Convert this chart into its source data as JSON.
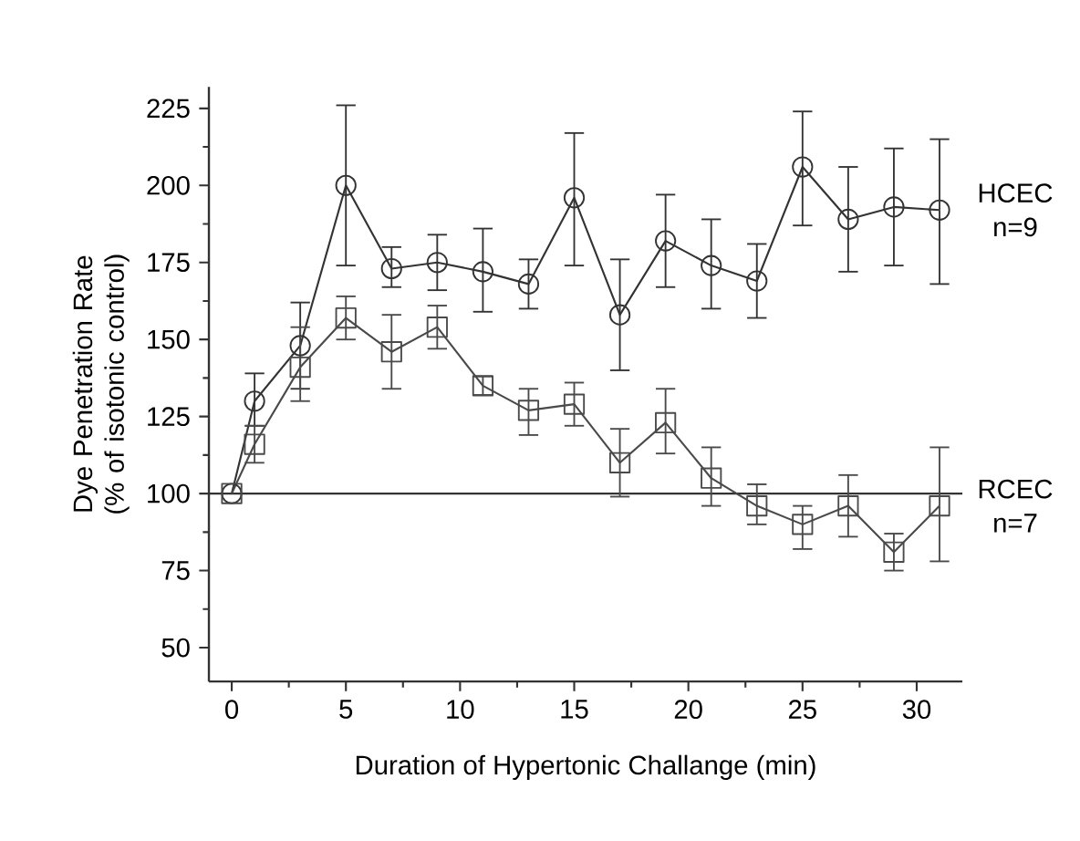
{
  "chart_data": {
    "type": "line",
    "xlabel": "Duration of Hypertonic Challange (min)",
    "ylabel": "Dye Penetration Rate (% of isotonic control)",
    "x": [
      0,
      1,
      3,
      5,
      7,
      9,
      11,
      13,
      15,
      17,
      19,
      21,
      23,
      25,
      27,
      29,
      31
    ],
    "xlim": [
      -1,
      32
    ],
    "xticks": [
      0,
      5,
      10,
      15,
      20,
      25,
      30
    ],
    "ylim": [
      39,
      232
    ],
    "yticks": [
      50,
      75,
      100,
      125,
      150,
      175,
      200,
      225
    ],
    "series": [
      {
        "name": "HCEC",
        "color": "#333333",
        "marker": "circle",
        "values": [
          100,
          130,
          148,
          200,
          173,
          175,
          172,
          168,
          196,
          158,
          182,
          174,
          169,
          206,
          189,
          193,
          192
        ],
        "errors": [
          null,
          [
            122,
            139
          ],
          [
            134,
            162
          ],
          [
            174,
            226
          ],
          [
            167,
            180
          ],
          [
            166,
            184
          ],
          [
            159,
            186
          ],
          [
            160,
            176
          ],
          [
            174,
            217
          ],
          [
            140,
            176
          ],
          [
            167,
            197
          ],
          [
            160,
            189
          ],
          [
            157,
            181
          ],
          [
            187,
            224
          ],
          [
            172,
            206
          ],
          [
            174,
            212
          ],
          [
            168,
            215
          ]
        ]
      },
      {
        "name": "RCEC",
        "color": "#4a4a4a",
        "marker": "square",
        "values": [
          100,
          116,
          141,
          157,
          146,
          154,
          135,
          127,
          129,
          110,
          123,
          105,
          96,
          90,
          96,
          81,
          96
        ],
        "errors": [
          null,
          [
            110,
            122
          ],
          [
            130,
            154
          ],
          [
            150,
            164
          ],
          [
            134,
            158
          ],
          [
            147,
            161
          ],
          [
            132,
            138
          ],
          [
            119,
            134
          ],
          [
            122,
            136
          ],
          [
            99,
            121
          ],
          [
            113,
            134
          ],
          [
            96,
            115
          ],
          [
            90,
            103
          ],
          [
            82,
            96
          ],
          [
            86,
            106
          ],
          [
            75,
            87
          ],
          [
            78,
            115
          ]
        ]
      }
    ],
    "annotations": [
      "n=9",
      "n=7"
    ],
    "ref_lines": [
      {
        "axis": "y",
        "value": 100,
        "color": "#333333"
      }
    ],
    "line_style": "solid",
    "grid": false,
    "legend": false
  }
}
